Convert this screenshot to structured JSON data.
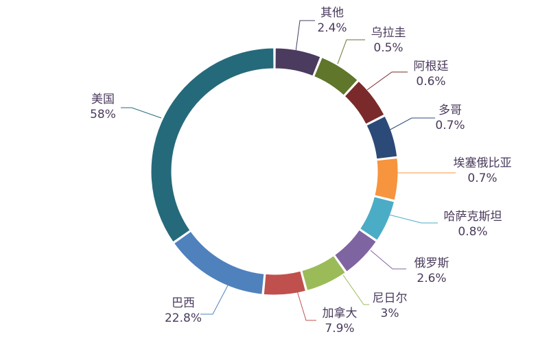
{
  "chart_data": {
    "type": "pie",
    "donut": true,
    "title": "",
    "legend": "none",
    "slices": [
      {
        "label": "其他",
        "value_text": "2.4%",
        "value": 2.4,
        "color": "#4b3b5f"
      },
      {
        "label": "乌拉圭",
        "value_text": "0.5%",
        "value": 0.5,
        "color": "#5f762b"
      },
      {
        "label": "阿根廷",
        "value_text": "0.6%",
        "value": 0.6,
        "color": "#7a2a2a"
      },
      {
        "label": "多哥",
        "value_text": "0.7%",
        "value": 0.7,
        "color": "#2b4a78"
      },
      {
        "label": "埃塞俄比亚",
        "value_text": "0.7%",
        "value": 0.7,
        "color": "#f7943e"
      },
      {
        "label": "哈萨克斯坦",
        "value_text": "0.8%",
        "value": 0.8,
        "color": "#4bacc6"
      },
      {
        "label": "俄罗斯",
        "value_text": "2.6%",
        "value": 2.6,
        "color": "#7f64a2"
      },
      {
        "label": "尼日尔",
        "value_text": "3%",
        "value": 3.0,
        "color": "#9bbb59"
      },
      {
        "label": "加拿大",
        "value_text": "7.9%",
        "value": 7.9,
        "color": "#c0504d"
      },
      {
        "label": "巴西",
        "value_text": "22.8%",
        "value": 22.8,
        "color": "#4f81bd"
      },
      {
        "label": "美国",
        "value_text": "58%",
        "value": 58.0,
        "color": "#256a7b"
      }
    ]
  }
}
